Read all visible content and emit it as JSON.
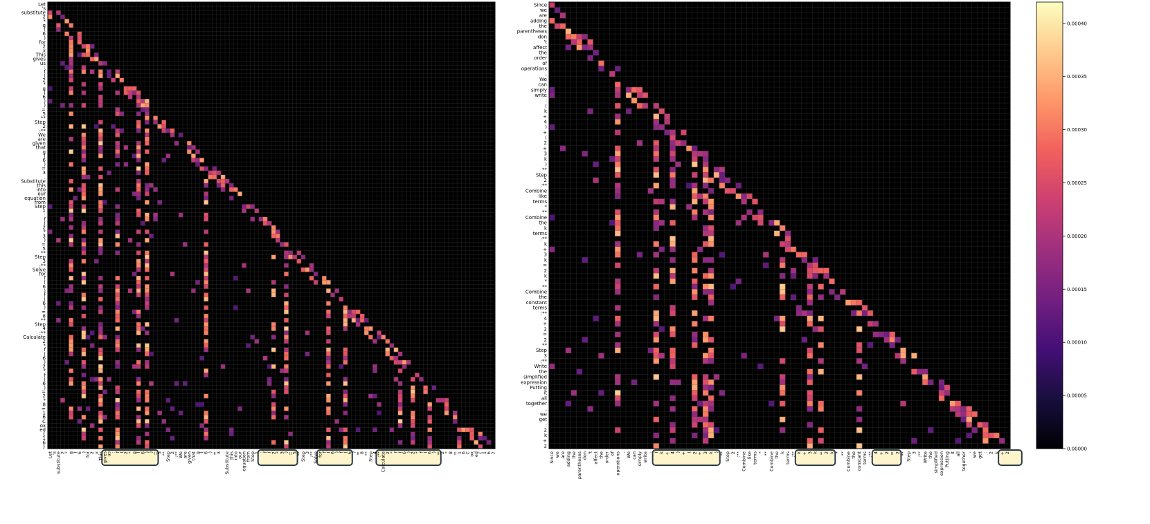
{
  "colors": {
    "background": "#000000",
    "grid": "#4a4a4a",
    "highlight_fill": "#fff5cc",
    "highlight_stroke": "#2b3a4a",
    "colormap": [
      "#000004",
      "#180f3d",
      "#440f76",
      "#721f81",
      "#9e2f7f",
      "#cd4071",
      "#f1605d",
      "#fd9668",
      "#feca8d",
      "#fcfdbf"
    ]
  },
  "chart_data": [
    {
      "type": "heatmap",
      "title": "",
      "xlabel": "",
      "ylabel": "",
      "tokens": [
        "Let",
        "'s",
        "substitute",
        "2",
        "*",
        "g",
        "(",
        "6",
        ")",
        "for",
        "2",
        "x",
        "This",
        "gives",
        "us",
        ":",
        "f",
        "(",
        "2",
        "*",
        "g",
        "(",
        "6",
        ")",
        ")",
        "=",
        "5",
        "**",
        "Step",
        "2",
        ":**",
        "We",
        "are",
        "given",
        "that",
        "g",
        "(",
        "6",
        ")",
        "=",
        "3",
        ".",
        "Substitute",
        "this",
        "into",
        "our",
        "equation",
        "from",
        "Step",
        "1",
        ":",
        "f",
        "(",
        "2",
        "*",
        "3",
        ")",
        "=",
        "5",
        "**",
        "Step",
        "3",
        ":**",
        "Solve",
        "for",
        "f",
        "(",
        "6",
        ")",
        "f",
        "(",
        "6",
        ")",
        "=",
        "8",
        "**",
        "Step",
        "4",
        ":**",
        "Calculate",
        "2",
        "*",
        "f",
        "(",
        "6",
        ")",
        "2",
        "*",
        "f",
        "(",
        "6",
        ")",
        "=",
        "2",
        "*",
        "8",
        "=",
        "1",
        "6",
        "C",
        "ox",
        "ed",
        "{",
        "1",
        "6",
        "}"
      ],
      "highlight_x_ranges": [
        [
          13,
          25
        ],
        [
          50,
          58
        ],
        [
          64,
          71
        ],
        [
          78,
          92
        ]
      ]
    },
    {
      "type": "heatmap",
      "title": "",
      "xlabel": "",
      "ylabel": "",
      "tokens": [
        "Since",
        "we",
        "are",
        "adding",
        "the",
        "parentheses",
        "don",
        "'t",
        "affect",
        "the",
        "order",
        "of",
        "operations",
        ",",
        "We",
        "can",
        "simply",
        "write",
        ":",
        "(",
        "k",
        "+",
        "4",
        ")",
        "+",
        "(",
        "2",
        "+",
        "3",
        "k",
        ")",
        "**",
        "Step",
        "2",
        ":**",
        "Combine",
        "like",
        "terms",
        "*",
        "**",
        "Combine",
        "the",
        "k",
        "terms",
        ":**",
        "k",
        "+",
        "3",
        "k",
        "=",
        "2",
        "k",
        "*",
        "**",
        "Combine",
        "the",
        "constant",
        "terms",
        ":**",
        "4",
        "+",
        "2",
        "=",
        "2",
        "**",
        "Step",
        "3",
        ":**",
        "Write",
        "the",
        "simplified",
        "expression",
        "Putting",
        "it",
        "all",
        "together",
        ",",
        "we",
        "get",
        ":",
        "2",
        "k",
        "+",
        "2"
      ],
      "highlight_x_ranges": [
        [
          19,
          30
        ],
        [
          45,
          51
        ],
        [
          59,
          63
        ],
        [
          82,
          85
        ]
      ]
    }
  ],
  "colorbar": {
    "min": 0,
    "max": 0.00042,
    "ticks": [
      {
        "value": 0,
        "label": "0.00000"
      },
      {
        "value": 5e-05,
        "label": "0.00005"
      },
      {
        "value": 0.0001,
        "label": "0.00010"
      },
      {
        "value": 0.00015,
        "label": "0.00015"
      },
      {
        "value": 0.0002,
        "label": "0.00020"
      },
      {
        "value": 0.00025,
        "label": "0.00025"
      },
      {
        "value": 0.0003,
        "label": "0.00030"
      },
      {
        "value": 0.00035,
        "label": "0.00035"
      },
      {
        "value": 0.0004,
        "label": "0.00040"
      }
    ]
  }
}
